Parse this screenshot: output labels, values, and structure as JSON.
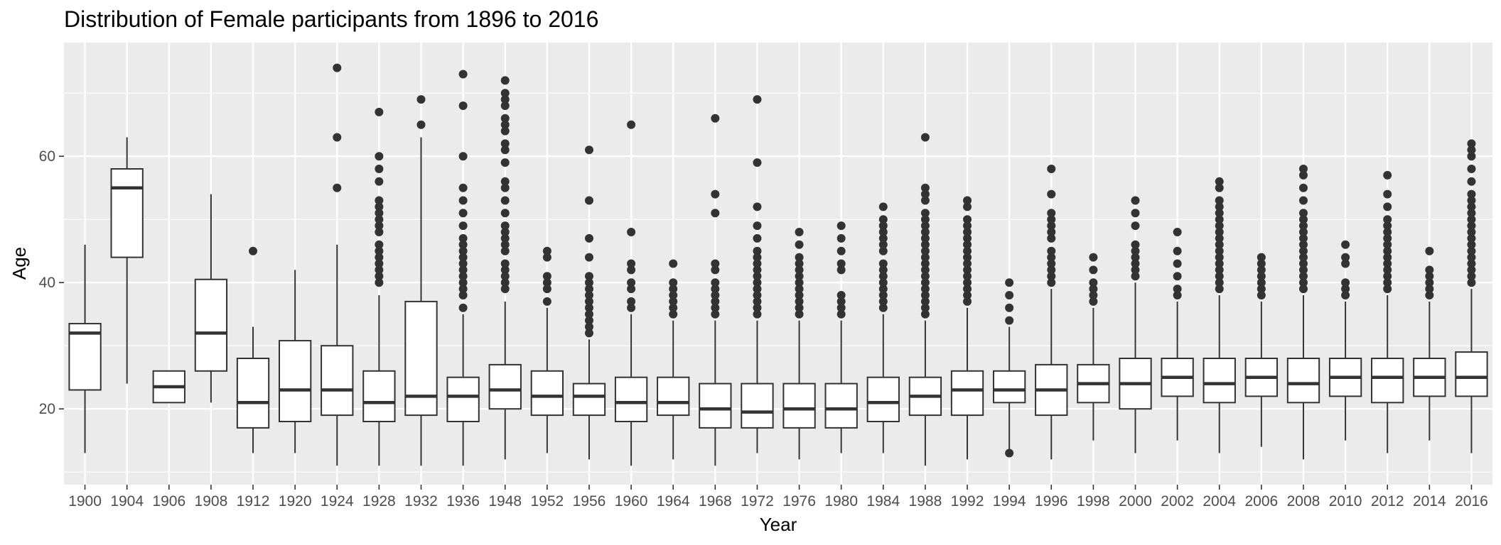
{
  "chart_data": {
    "type": "boxplot",
    "title": "Distribution of Female participants from 1896 to 2016",
    "xlabel": "Year",
    "ylabel": "Age",
    "ylim": [
      8,
      78
    ],
    "yticks": [
      20,
      40,
      60
    ],
    "grid": true,
    "colors": {
      "panel": "#ebebeb",
      "grid": "#ffffff",
      "box_line": "#333333",
      "box_fill": "#ffffff",
      "outlier": "#333333",
      "tick": "#333333"
    },
    "categories": [
      "1900",
      "1904",
      "1906",
      "1908",
      "1912",
      "1920",
      "1924",
      "1928",
      "1932",
      "1936",
      "1948",
      "1952",
      "1956",
      "1960",
      "1964",
      "1968",
      "1972",
      "1976",
      "1980",
      "1984",
      "1988",
      "1992",
      "1994",
      "1996",
      "1998",
      "2000",
      "2002",
      "2004",
      "2006",
      "2008",
      "2010",
      "2012",
      "2014",
      "2016"
    ],
    "boxes": [
      {
        "min": 13,
        "q1": 23,
        "median": 32,
        "q3": 33.5,
        "max": 46,
        "outliers": []
      },
      {
        "min": 24,
        "q1": 44,
        "median": 55,
        "q3": 58,
        "max": 63,
        "outliers": []
      },
      {
        "min": 21,
        "q1": 21,
        "median": 23.5,
        "q3": 26,
        "max": 26,
        "outliers": []
      },
      {
        "min": 21,
        "q1": 26,
        "median": 32,
        "q3": 40.5,
        "max": 54,
        "outliers": []
      },
      {
        "min": 13,
        "q1": 17,
        "median": 21,
        "q3": 28,
        "max": 33,
        "outliers": [
          45
        ]
      },
      {
        "min": 13,
        "q1": 18,
        "median": 23,
        "q3": 30.8,
        "max": 42,
        "outliers": []
      },
      {
        "min": 11,
        "q1": 19,
        "median": 23,
        "q3": 30,
        "max": 46,
        "outliers": [
          55,
          63,
          74
        ]
      },
      {
        "min": 11,
        "q1": 18,
        "median": 21,
        "q3": 26,
        "max": 38,
        "outliers": [
          40,
          41,
          42,
          43,
          44,
          45,
          46,
          48,
          49,
          50,
          51,
          52,
          53,
          56,
          58,
          60,
          67
        ]
      },
      {
        "min": 11,
        "q1": 19,
        "median": 22,
        "q3": 37,
        "max": 63,
        "outliers": [
          65,
          69
        ]
      },
      {
        "min": 11,
        "q1": 18,
        "median": 22,
        "q3": 25,
        "max": 35,
        "outliers": [
          36,
          38,
          39,
          40,
          41,
          42,
          43,
          44,
          45,
          46,
          47,
          49,
          51,
          53,
          55,
          60,
          68,
          73
        ]
      },
      {
        "min": 12,
        "q1": 20,
        "median": 23,
        "q3": 27,
        "max": 37,
        "outliers": [
          39,
          40,
          41,
          42,
          43,
          45,
          46,
          47,
          48,
          49,
          51,
          53,
          55,
          56,
          59,
          61,
          62,
          64,
          65,
          66,
          68,
          69,
          70,
          72
        ]
      },
      {
        "min": 13,
        "q1": 19,
        "median": 22,
        "q3": 26,
        "max": 36,
        "outliers": [
          37,
          39,
          40,
          41,
          44,
          45
        ]
      },
      {
        "min": 12,
        "q1": 19,
        "median": 22,
        "q3": 24,
        "max": 31,
        "outliers": [
          32,
          33,
          34,
          35,
          36,
          37,
          38,
          39,
          40,
          41,
          44,
          47,
          53,
          61
        ]
      },
      {
        "min": 11,
        "q1": 18,
        "median": 21,
        "q3": 25,
        "max": 35,
        "outliers": [
          36,
          37,
          39,
          40,
          42,
          43,
          48,
          65
        ]
      },
      {
        "min": 12,
        "q1": 19,
        "median": 21,
        "q3": 25,
        "max": 34,
        "outliers": [
          35,
          36,
          37,
          38,
          39,
          40,
          43
        ]
      },
      {
        "min": 11,
        "q1": 17,
        "median": 20,
        "q3": 24,
        "max": 34,
        "outliers": [
          35,
          36,
          37,
          38,
          39,
          40,
          42,
          43,
          51,
          54,
          66
        ]
      },
      {
        "min": 13,
        "q1": 17,
        "median": 19.5,
        "q3": 24,
        "max": 34,
        "outliers": [
          35,
          36,
          37,
          38,
          39,
          40,
          41,
          42,
          43,
          44,
          45,
          47,
          49,
          52,
          59,
          69
        ]
      },
      {
        "min": 12,
        "q1": 17,
        "median": 20,
        "q3": 24,
        "max": 34,
        "outliers": [
          35,
          36,
          37,
          38,
          39,
          40,
          41,
          42,
          43,
          44,
          46,
          48
        ]
      },
      {
        "min": 13,
        "q1": 17,
        "median": 20,
        "q3": 24,
        "max": 34,
        "outliers": [
          35,
          36,
          37,
          38,
          42,
          43,
          45,
          47,
          49
        ]
      },
      {
        "min": 13,
        "q1": 18,
        "median": 21,
        "q3": 25,
        "max": 35,
        "outliers": [
          36,
          37,
          38,
          39,
          40,
          41,
          42,
          43,
          45,
          46,
          47,
          48,
          49,
          50,
          52
        ]
      },
      {
        "min": 11,
        "q1": 19,
        "median": 22,
        "q3": 25,
        "max": 34,
        "outliers": [
          35,
          36,
          37,
          38,
          39,
          40,
          41,
          42,
          43,
          44,
          45,
          46,
          47,
          48,
          49,
          50,
          51,
          53,
          54,
          55,
          63
        ]
      },
      {
        "min": 12,
        "q1": 19,
        "median": 23,
        "q3": 26,
        "max": 36,
        "outliers": [
          37,
          38,
          39,
          40,
          41,
          42,
          43,
          44,
          45,
          46,
          47,
          48,
          49,
          50,
          52,
          53
        ]
      },
      {
        "min": 13,
        "q1": 21,
        "median": 23,
        "q3": 26,
        "max": 33,
        "outliers": [
          13,
          34,
          36,
          38,
          40
        ]
      },
      {
        "min": 12,
        "q1": 19,
        "median": 23,
        "q3": 27,
        "max": 39,
        "outliers": [
          40,
          41,
          42,
          43,
          44,
          45,
          47,
          48,
          49,
          50,
          51,
          54,
          58
        ]
      },
      {
        "min": 15,
        "q1": 21,
        "median": 24,
        "q3": 27,
        "max": 36,
        "outliers": [
          37,
          38,
          39,
          40,
          42,
          44
        ]
      },
      {
        "min": 13,
        "q1": 20,
        "median": 24,
        "q3": 28,
        "max": 40,
        "outliers": [
          41,
          42,
          43,
          44,
          45,
          46,
          49,
          51,
          53
        ]
      },
      {
        "min": 15,
        "q1": 22,
        "median": 25,
        "q3": 28,
        "max": 37,
        "outliers": [
          38,
          39,
          41,
          43,
          45,
          48
        ]
      },
      {
        "min": 13,
        "q1": 21,
        "median": 24,
        "q3": 28,
        "max": 38,
        "outliers": [
          39,
          40,
          41,
          42,
          43,
          44,
          45,
          46,
          47,
          48,
          49,
          50,
          51,
          52,
          53,
          55,
          56
        ]
      },
      {
        "min": 14,
        "q1": 22,
        "median": 25,
        "q3": 28,
        "max": 37,
        "outliers": [
          38,
          39,
          40,
          41,
          42,
          43,
          44
        ]
      },
      {
        "min": 12,
        "q1": 21,
        "median": 24,
        "q3": 28,
        "max": 38,
        "outliers": [
          39,
          40,
          41,
          42,
          43,
          44,
          45,
          46,
          47,
          48,
          49,
          50,
          51,
          53,
          55,
          57,
          58
        ]
      },
      {
        "min": 15,
        "q1": 22,
        "median": 25,
        "q3": 28,
        "max": 37,
        "outliers": [
          38,
          39,
          40,
          43,
          44,
          46
        ]
      },
      {
        "min": 13,
        "q1": 21,
        "median": 25,
        "q3": 28,
        "max": 38,
        "outliers": [
          39,
          40,
          41,
          42,
          43,
          44,
          45,
          46,
          47,
          48,
          49,
          50,
          52,
          54,
          57
        ]
      },
      {
        "min": 15,
        "q1": 22,
        "median": 25,
        "q3": 28,
        "max": 37,
        "outliers": [
          38,
          39,
          40,
          41,
          42,
          45
        ]
      },
      {
        "min": 13,
        "q1": 22,
        "median": 25,
        "q3": 29,
        "max": 39,
        "outliers": [
          40,
          41,
          42,
          43,
          44,
          45,
          46,
          47,
          48,
          49,
          50,
          51,
          52,
          53,
          54,
          56,
          58,
          60,
          61,
          62
        ]
      }
    ]
  }
}
